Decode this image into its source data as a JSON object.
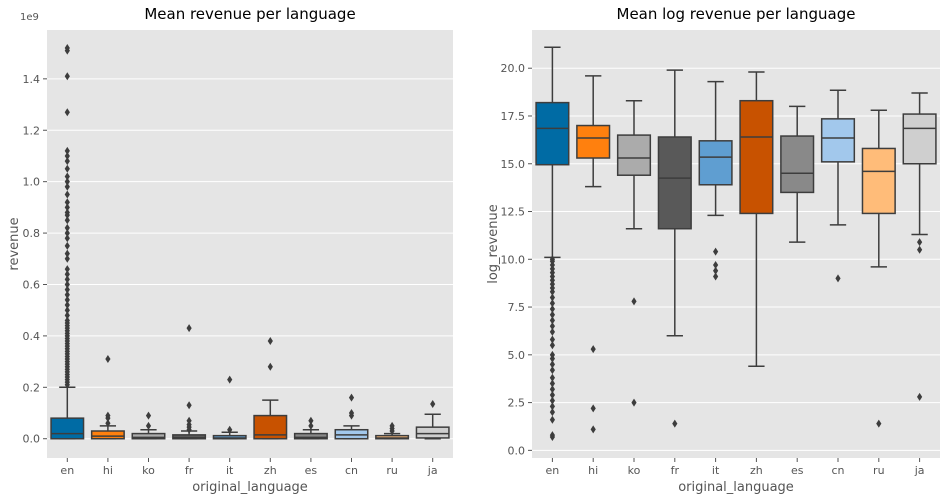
{
  "palette": [
    "#006BA4",
    "#FF800E",
    "#ABABAB",
    "#595959",
    "#5F9ED1",
    "#C85200",
    "#898989",
    "#A2C8EC",
    "#FFBC79",
    "#CFCFCF"
  ],
  "chart_data": [
    {
      "type": "box",
      "title": "Mean revenue per language",
      "xlabel": "original_language",
      "ylabel": "revenue",
      "offset_text": "1e9",
      "ylim": [
        -0.075,
        1.59
      ],
      "yticks": [
        0.0,
        0.2,
        0.4,
        0.6,
        0.8,
        1.0,
        1.2,
        1.4
      ],
      "ytick_labels": [
        "0.0",
        "0.2",
        "0.4",
        "0.6",
        "0.8",
        "1.0",
        "1.2",
        "1.4"
      ],
      "categories": [
        "en",
        "hi",
        "ko",
        "fr",
        "it",
        "zh",
        "es",
        "cn",
        "ru",
        "ja"
      ],
      "boxes": [
        {
          "q1": 0.0,
          "median": 0.02,
          "q3": 0.08,
          "whislo": 0.0,
          "whishi": 0.2,
          "fliers": [
            0.21,
            0.22,
            0.23,
            0.24,
            0.25,
            0.26,
            0.27,
            0.28,
            0.29,
            0.3,
            0.31,
            0.32,
            0.33,
            0.34,
            0.35,
            0.36,
            0.37,
            0.38,
            0.39,
            0.4,
            0.41,
            0.42,
            0.43,
            0.44,
            0.45,
            0.46,
            0.48,
            0.5,
            0.52,
            0.54,
            0.56,
            0.58,
            0.6,
            0.62,
            0.64,
            0.66,
            0.7,
            0.72,
            0.75,
            0.78,
            0.8,
            0.82,
            0.85,
            0.87,
            0.88,
            0.9,
            0.92,
            0.95,
            0.98,
            1.0,
            1.02,
            1.05,
            1.08,
            1.1,
            1.12,
            1.27,
            1.41,
            1.51,
            1.52
          ]
        },
        {
          "q1": 0.0,
          "median": 0.01,
          "q3": 0.03,
          "whislo": 0.0,
          "whishi": 0.05,
          "fliers": [
            0.06,
            0.08,
            0.09,
            0.31
          ]
        },
        {
          "q1": 0.0,
          "median": 0.005,
          "q3": 0.02,
          "whislo": 0.0,
          "whishi": 0.035,
          "fliers": [
            0.05,
            0.09
          ]
        },
        {
          "q1": 0.0,
          "median": 0.004,
          "q3": 0.015,
          "whislo": 0.0,
          "whishi": 0.03,
          "fliers": [
            0.035,
            0.045,
            0.055,
            0.07,
            0.13,
            0.43
          ]
        },
        {
          "q1": 0.0,
          "median": 0.003,
          "q3": 0.012,
          "whislo": 0.0,
          "whishi": 0.025,
          "fliers": [
            0.035,
            0.23
          ]
        },
        {
          "q1": 0.0,
          "median": 0.015,
          "q3": 0.09,
          "whislo": 0.0,
          "whishi": 0.15,
          "fliers": [
            0.28,
            0.38
          ]
        },
        {
          "q1": 0.0,
          "median": 0.005,
          "q3": 0.02,
          "whislo": 0.0,
          "whishi": 0.035,
          "fliers": [
            0.05,
            0.07
          ]
        },
        {
          "q1": 0.0,
          "median": 0.015,
          "q3": 0.035,
          "whislo": 0.0,
          "whishi": 0.05,
          "fliers": [
            0.09,
            0.1,
            0.16
          ]
        },
        {
          "q1": 0.0,
          "median": 0.003,
          "q3": 0.012,
          "whislo": 0.0,
          "whishi": 0.02,
          "fliers": [
            0.03,
            0.04,
            0.05
          ]
        },
        {
          "q1": 0.003,
          "median": 0.02,
          "q3": 0.045,
          "whislo": 0.0,
          "whishi": 0.095,
          "fliers": [
            0.135
          ]
        }
      ]
    },
    {
      "type": "box",
      "title": "Mean log revenue per language",
      "xlabel": "original_language",
      "ylabel": "log_revenue",
      "ylim": [
        -0.4,
        22.0
      ],
      "yticks": [
        0.0,
        2.5,
        5.0,
        7.5,
        10.0,
        12.5,
        15.0,
        17.5,
        20.0
      ],
      "ytick_labels": [
        "0.0",
        "2.5",
        "5.0",
        "7.5",
        "10.0",
        "12.5",
        "15.0",
        "17.5",
        "20.0"
      ],
      "categories": [
        "en",
        "hi",
        "ko",
        "fr",
        "it",
        "zh",
        "es",
        "cn",
        "ru",
        "ja"
      ],
      "boxes": [
        {
          "q1": 14.95,
          "median": 16.85,
          "q3": 18.2,
          "whislo": 10.1,
          "whishi": 21.1,
          "fliers": [
            0.7,
            0.8,
            1.6,
            2.0,
            2.3,
            2.6,
            2.9,
            3.2,
            3.5,
            3.8,
            4.2,
            4.5,
            4.8,
            5.0,
            5.5,
            5.8,
            6.2,
            6.5,
            6.8,
            7.1,
            7.4,
            7.7,
            8.0,
            8.3,
            8.5,
            8.7,
            8.9,
            9.1,
            9.3,
            9.5,
            9.7,
            9.9,
            10.0
          ]
        },
        {
          "q1": 15.3,
          "median": 16.35,
          "q3": 17.0,
          "whislo": 13.8,
          "whishi": 19.6,
          "fliers": [
            1.1,
            2.2,
            5.3
          ]
        },
        {
          "q1": 14.4,
          "median": 15.3,
          "q3": 16.5,
          "whislo": 11.6,
          "whishi": 18.3,
          "fliers": [
            2.5,
            7.8
          ]
        },
        {
          "q1": 11.6,
          "median": 14.25,
          "q3": 16.4,
          "whislo": 6.0,
          "whishi": 19.9,
          "fliers": [
            1.4
          ]
        },
        {
          "q1": 13.9,
          "median": 15.35,
          "q3": 16.2,
          "whislo": 12.3,
          "whishi": 19.3,
          "fliers": [
            9.1,
            9.4,
            9.7,
            10.4
          ]
        },
        {
          "q1": 12.4,
          "median": 16.4,
          "q3": 18.3,
          "whislo": 4.4,
          "whishi": 19.8,
          "fliers": []
        },
        {
          "q1": 13.5,
          "median": 14.5,
          "q3": 16.45,
          "whislo": 10.9,
          "whishi": 18.0,
          "fliers": []
        },
        {
          "q1": 15.1,
          "median": 16.35,
          "q3": 17.35,
          "whislo": 11.8,
          "whishi": 18.85,
          "fliers": [
            9.0
          ]
        },
        {
          "q1": 12.4,
          "median": 14.6,
          "q3": 15.8,
          "whislo": 9.6,
          "whishi": 17.8,
          "fliers": [
            1.4
          ]
        },
        {
          "q1": 15.0,
          "median": 16.85,
          "q3": 17.6,
          "whislo": 11.3,
          "whishi": 18.7,
          "fliers": [
            2.8,
            10.5,
            10.9
          ]
        }
      ]
    }
  ]
}
